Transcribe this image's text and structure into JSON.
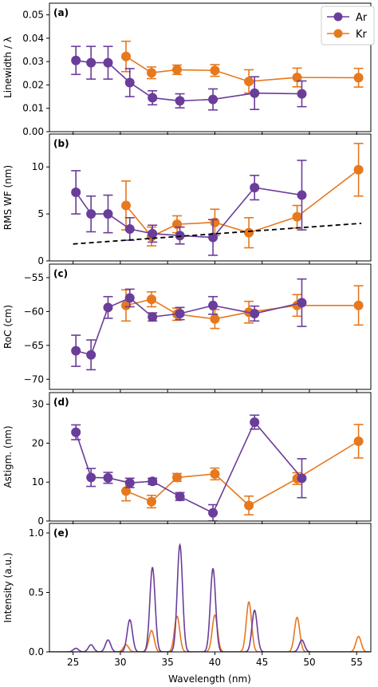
{
  "colors": {
    "ar": "#6a3d9a",
    "kr": "#e6781e",
    "trend": "#000000"
  },
  "legend": {
    "ar": "Ar",
    "kr": "Kr",
    "placement": "top-right"
  },
  "chart_data": [
    {
      "type": "line",
      "panel": "(a)",
      "ylabel": "Linewidth / λ",
      "ylim": [
        0,
        0.055
      ],
      "yticks": [
        "0.00",
        "0.01",
        "0.02",
        "0.03",
        "0.04",
        "0.05"
      ],
      "ytick_values": [
        0,
        0.01,
        0.02,
        0.03,
        0.04,
        0.05
      ],
      "series": [
        {
          "name": "Ar",
          "x": [
            25.3,
            26.9,
            28.7,
            31.0,
            33.4,
            36.3,
            39.8,
            44.2,
            49.2
          ],
          "y": [
            0.0305,
            0.0295,
            0.0295,
            0.021,
            0.0145,
            0.0132,
            0.0138,
            0.0165,
            0.0162
          ],
          "err": [
            0.006,
            0.007,
            0.007,
            0.006,
            0.003,
            0.003,
            0.0045,
            0.007,
            0.0055
          ]
        },
        {
          "name": "Kr",
          "x": [
            30.6,
            33.3,
            36.0,
            40.0,
            43.6,
            48.7,
            55.2
          ],
          "y": [
            0.0322,
            0.0252,
            0.0265,
            0.0262,
            0.0215,
            0.0232,
            0.0231
          ],
          "err": [
            0.0065,
            0.0025,
            0.002,
            0.0025,
            0.005,
            0.004,
            0.004
          ]
        }
      ]
    },
    {
      "type": "line",
      "panel": "(b)",
      "ylabel": "RMS WF (nm)",
      "ylim": [
        0,
        13.5
      ],
      "yticks": [
        "0",
        "5",
        "10"
      ],
      "ytick_values": [
        0,
        5,
        10
      ],
      "series": [
        {
          "name": "Ar",
          "x": [
            25.3,
            26.9,
            28.7,
            31.0,
            33.4,
            36.3,
            39.8,
            44.2,
            49.2
          ],
          "y": [
            7.3,
            5.0,
            5.0,
            3.4,
            2.9,
            2.7,
            2.5,
            7.8,
            7.0
          ],
          "err": [
            2.3,
            1.9,
            2.0,
            1.2,
            0.9,
            0.9,
            1.9,
            1.3,
            3.7
          ]
        },
        {
          "name": "Kr",
          "x": [
            30.6,
            33.3,
            36.0,
            40.0,
            43.6,
            48.7,
            55.2
          ],
          "y": [
            5.9,
            2.6,
            3.9,
            4.1,
            3.0,
            4.7,
            9.7
          ],
          "err": [
            2.6,
            1.0,
            0.9,
            1.4,
            1.6,
            1.2,
            2.8
          ]
        }
      ],
      "trend_line": {
        "x": [
          25.0,
          55.5
        ],
        "y": [
          1.8,
          4.0
        ]
      }
    },
    {
      "type": "line",
      "panel": "(c)",
      "ylabel": "RoC (cm)",
      "ylim": [
        -71.5,
        -53
      ],
      "yticks": [
        "−55",
        "−60",
        "−65",
        "−70"
      ],
      "ytick_values": [
        -55,
        -60,
        -65,
        -70
      ],
      "series": [
        {
          "name": "Ar",
          "x": [
            25.3,
            26.9,
            28.7,
            31.0,
            33.4,
            36.3,
            39.8,
            44.2,
            49.2
          ],
          "y": [
            -65.8,
            -66.4,
            -59.4,
            -58.0,
            -60.8,
            -60.3,
            -59.1,
            -60.3,
            -58.7
          ],
          "err": [
            2.3,
            2.2,
            1.6,
            1.3,
            0.6,
            0.9,
            1.3,
            1.1,
            3.5
          ]
        },
        {
          "name": "Kr",
          "x": [
            30.6,
            33.3,
            36.0,
            40.0,
            43.6,
            48.7,
            55.2
          ],
          "y": [
            -59.1,
            -58.2,
            -60.4,
            -61.1,
            -60.1,
            -59.1,
            -59.1
          ],
          "err": [
            2.3,
            1.1,
            0.9,
            1.4,
            1.6,
            1.6,
            2.9
          ]
        }
      ]
    },
    {
      "type": "line",
      "panel": "(d)",
      "ylabel": "Astigm. (nm)",
      "ylim": [
        0,
        33
      ],
      "yticks": [
        "0",
        "10",
        "20",
        "30"
      ],
      "ytick_values": [
        0,
        10,
        20,
        30
      ],
      "series": [
        {
          "name": "Ar",
          "x": [
            25.3,
            26.9,
            28.7,
            31.0,
            33.4,
            36.3,
            39.8,
            44.2,
            49.2
          ],
          "y": [
            22.8,
            11.2,
            11.1,
            9.8,
            10.2,
            6.3,
            2.1,
            25.4,
            11.0
          ],
          "err": [
            1.9,
            2.3,
            1.4,
            1.2,
            0.8,
            1.0,
            2.1,
            1.8,
            5.0
          ]
        },
        {
          "name": "Kr",
          "x": [
            30.6,
            33.3,
            36.0,
            40.0,
            43.6,
            48.7,
            55.2
          ],
          "y": [
            7.7,
            5.0,
            11.2,
            12.1,
            4.0,
            10.9,
            20.5
          ],
          "err": [
            2.5,
            1.6,
            1.0,
            1.5,
            2.4,
            1.5,
            4.3
          ]
        }
      ]
    },
    {
      "type": "line",
      "panel": "(e)",
      "ylabel": "Intensity (a.u.)",
      "xlabel": "Wavelength (nm)",
      "ylim": [
        0,
        1.08
      ],
      "xlim": [
        22.5,
        56.5
      ],
      "yticks": [
        "0.0",
        "0.5",
        "1.0"
      ],
      "ytick_values": [
        0,
        0.5,
        1.0
      ],
      "xticks": [
        "25",
        "30",
        "35",
        "40",
        "45",
        "50",
        "55"
      ],
      "xtick_values": [
        25,
        30,
        35,
        40,
        45,
        50,
        55
      ],
      "series": [
        {
          "name": "Ar",
          "x": [
            25.3,
            26.9,
            28.7,
            31.0,
            33.4,
            36.3,
            39.8,
            44.2,
            49.2
          ],
          "y": [
            0.03,
            0.06,
            0.1,
            0.27,
            0.71,
            0.9,
            0.7,
            0.35,
            0.1
          ]
        },
        {
          "name": "Kr",
          "x": [
            30.6,
            33.3,
            36.0,
            40.0,
            43.6,
            48.7,
            55.2
          ],
          "y": [
            0.06,
            0.18,
            0.3,
            0.31,
            0.42,
            0.29,
            0.13
          ]
        }
      ]
    }
  ]
}
